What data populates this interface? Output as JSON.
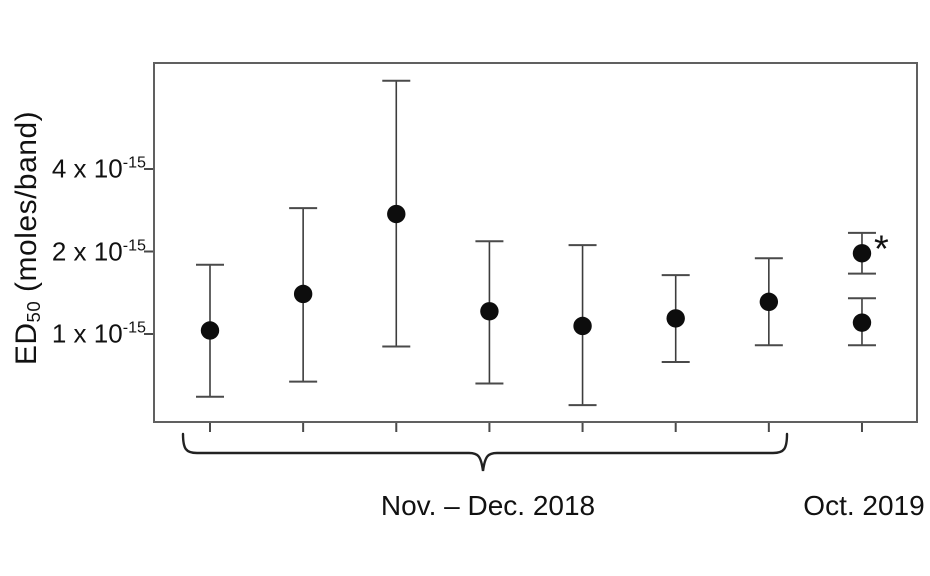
{
  "figure": {
    "y_axis": {
      "label_prefix": "ED",
      "label_sub": "50",
      "label_suffix": " (moles/band)",
      "ticks": [
        {
          "base": "4 x 10",
          "exp": "-15",
          "value": 4
        },
        {
          "base": "2 x 10",
          "exp": "-15",
          "value": 2
        },
        {
          "base": "1 x 10",
          "exp": "-15",
          "value": 1
        }
      ]
    },
    "x_axis": {
      "group_labels": [
        {
          "label": "Nov. – Dec. 2018"
        },
        {
          "label": "Oct. 2019"
        }
      ]
    },
    "annotation_star": "*"
  },
  "chart_data": {
    "type": "scatter",
    "title": "",
    "xlabel": "",
    "ylabel": "ED50 (moles/band)",
    "y_scale": "log2",
    "value_unit_multiplier": "1e-15",
    "y_tick_values": [
      4,
      2,
      1
    ],
    "legend": "none",
    "grid": false,
    "marker": "filled-circle-with-error-bars",
    "points": [
      {
        "slot": 0,
        "value": 1.03,
        "ci_low": 0.59,
        "ci_high": 1.79,
        "group": "Nov. – Dec. 2018",
        "star": false
      },
      {
        "slot": 1,
        "value": 1.4,
        "ci_low": 0.67,
        "ci_high": 2.88,
        "group": "Nov. – Dec. 2018",
        "star": false
      },
      {
        "slot": 2,
        "value": 2.74,
        "ci_low": 0.9,
        "ci_high": 8.4,
        "group": "Nov. – Dec. 2018",
        "star": false
      },
      {
        "slot": 3,
        "value": 1.21,
        "ci_low": 0.66,
        "ci_high": 2.18,
        "group": "Nov. – Dec. 2018",
        "star": false
      },
      {
        "slot": 4,
        "value": 1.07,
        "ci_low": 0.55,
        "ci_high": 2.11,
        "group": "Nov. – Dec. 2018",
        "star": false
      },
      {
        "slot": 5,
        "value": 1.14,
        "ci_low": 0.79,
        "ci_high": 1.64,
        "group": "Nov. – Dec. 2018",
        "star": false
      },
      {
        "slot": 6,
        "value": 1.31,
        "ci_low": 0.91,
        "ci_high": 1.89,
        "group": "Nov. – Dec. 2018",
        "star": false
      },
      {
        "slot": 7,
        "value": 1.97,
        "ci_low": 1.66,
        "ci_high": 2.34,
        "group": "Oct. 2019",
        "star": true
      },
      {
        "slot": 7,
        "value": 1.1,
        "ci_low": 0.91,
        "ci_high": 1.35,
        "group": "Oct. 2019",
        "star": false
      }
    ],
    "colors": {
      "marker_fill": "#0d0d0d",
      "error_line": "#3d3d3d",
      "cap_line": "#4a4a4a",
      "axis_border": "#606060",
      "tick_mark": "#4a4a4a",
      "brace": "#222222",
      "text": "#111111"
    }
  }
}
